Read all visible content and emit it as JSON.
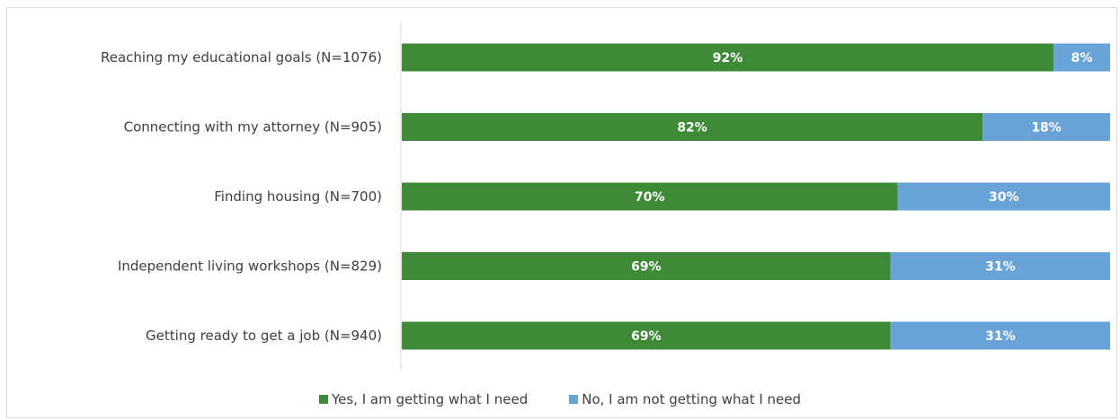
{
  "chart_data": {
    "type": "bar",
    "orientation": "horizontal",
    "stacked": true,
    "percent_stacked": true,
    "title": "",
    "categories": [
      "Reaching my educational goals (N=1076)",
      "Connecting with my attorney (N=905)",
      "Finding housing (N=700)",
      "Independent living workshops (N=829)",
      "Getting ready to get a job (N=940)"
    ],
    "series": [
      {
        "name": "Yes, I am getting what I need",
        "color": "#3d8b37",
        "values": [
          92,
          82,
          70,
          69,
          69
        ],
        "labels": [
          "92%",
          "82%",
          "70%",
          "69%",
          "69%"
        ]
      },
      {
        "name": "No, I am not getting what I need",
        "color": "#6aa3d8",
        "values": [
          8,
          18,
          30,
          31,
          31
        ],
        "labels": [
          "8%",
          "18%",
          "30%",
          "31%",
          "31%"
        ]
      }
    ],
    "xlim": [
      0,
      100
    ],
    "grid": false,
    "legend_position": "bottom"
  }
}
